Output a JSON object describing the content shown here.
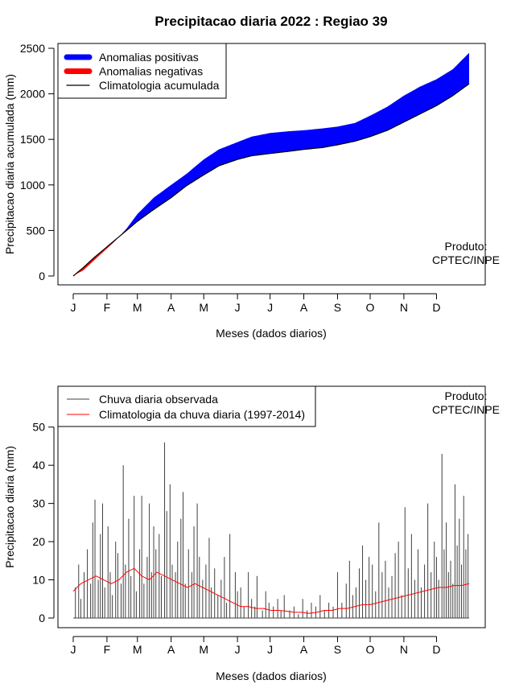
{
  "title": "Precipitacao diaria 2022 : Regiao 39",
  "chart_data": [
    {
      "type": "area",
      "ylabel": "Precipitacao diaria acumulada (mm)",
      "xlabel": "Meses (dados diarios)",
      "x_tick_labels": [
        "J",
        "F",
        "M",
        "A",
        "M",
        "J",
        "J",
        "A",
        "S",
        "O",
        "N",
        "D"
      ],
      "x_tick_days": [
        1,
        32,
        60,
        91,
        121,
        152,
        182,
        213,
        244,
        274,
        305,
        335
      ],
      "xlim": [
        1,
        365
      ],
      "ylim": [
        0,
        2500
      ],
      "y_ticks": [
        0,
        500,
        1000,
        1500,
        2000,
        2500
      ],
      "legend": {
        "position": "top-left",
        "entries": [
          "Anomalias positivas",
          "Anomalias negativas",
          "Climatologia acumulada"
        ]
      },
      "note": "Produto:\nCPTEC/INPE",
      "colors": {
        "positive": "#0000ff",
        "negative": "#ff0000",
        "climatology": "#000000"
      },
      "observed_cumulative": {
        "day": [
          1,
          10,
          20,
          30,
          40,
          50,
          60,
          75,
          91,
          105,
          121,
          135,
          152,
          165,
          182,
          200,
          213,
          230,
          244,
          260,
          274,
          290,
          305,
          320,
          335,
          350,
          365
        ],
        "value": [
          5,
          60,
          170,
          280,
          390,
          520,
          680,
          860,
          1000,
          1120,
          1280,
          1390,
          1470,
          1530,
          1570,
          1590,
          1600,
          1620,
          1640,
          1680,
          1760,
          1860,
          1980,
          2080,
          2160,
          2270,
          2450
        ]
      },
      "climatology_cumulative": {
        "day": [
          1,
          10,
          20,
          30,
          40,
          50,
          60,
          75,
          91,
          105,
          121,
          135,
          152,
          165,
          182,
          200,
          213,
          230,
          244,
          260,
          274,
          290,
          305,
          320,
          335,
          350,
          365
        ],
        "value": [
          0,
          90,
          200,
          300,
          400,
          500,
          600,
          730,
          860,
          990,
          1110,
          1210,
          1280,
          1320,
          1345,
          1370,
          1390,
          1410,
          1440,
          1480,
          1530,
          1600,
          1690,
          1780,
          1870,
          1980,
          2110
        ]
      }
    },
    {
      "type": "line",
      "ylabel": "Precipitacao diaria (mm)",
      "xlabel": "Meses (dados diarios)",
      "x_tick_labels": [
        "J",
        "F",
        "M",
        "A",
        "M",
        "J",
        "J",
        "A",
        "S",
        "O",
        "N",
        "D"
      ],
      "x_tick_days": [
        1,
        32,
        60,
        91,
        121,
        152,
        182,
        213,
        244,
        274,
        305,
        335
      ],
      "xlim": [
        1,
        365
      ],
      "ylim": [
        0,
        55
      ],
      "y_ticks": [
        0,
        10,
        20,
        30,
        40,
        50
      ],
      "legend": {
        "position": "top-left",
        "entries": [
          "Chuva diaria observada",
          "Climatologia da chuva diaria (1997-2014)"
        ]
      },
      "note": "Produto:\nCPTEC/INPE",
      "colors": {
        "observed": "#404040",
        "climatology": "#ff0000"
      },
      "observed_daily": {
        "day": [
          3,
          6,
          8,
          11,
          14,
          17,
          19,
          21,
          24,
          26,
          28,
          30,
          33,
          35,
          37,
          40,
          42,
          45,
          47,
          49,
          52,
          54,
          57,
          59,
          62,
          64,
          66,
          69,
          71,
          73,
          75,
          77,
          80,
          82,
          85,
          87,
          90,
          92,
          95,
          97,
          100,
          102,
          104,
          107,
          110,
          112,
          115,
          117,
          120,
          123,
          126,
          128,
          131,
          134,
          137,
          140,
          142,
          145,
          150,
          152,
          155,
          158,
          162,
          165,
          168,
          170,
          175,
          178,
          181,
          185,
          189,
          192,
          195,
          200,
          204,
          208,
          212,
          216,
          220,
          224,
          228,
          232,
          236,
          240,
          244,
          248,
          252,
          255,
          258,
          261,
          264,
          267,
          270,
          273,
          276,
          279,
          282,
          285,
          288,
          291,
          294,
          297,
          300,
          303,
          306,
          309,
          312,
          315,
          318,
          321,
          324,
          327,
          330,
          333,
          335,
          337,
          340,
          342,
          344,
          346,
          348,
          350,
          352,
          354,
          356,
          358,
          360,
          362,
          364
        ],
        "value": [
          8,
          14,
          5,
          12,
          18,
          9,
          25,
          31,
          10,
          22,
          30,
          8,
          24,
          12,
          6,
          20,
          17,
          9,
          40,
          14,
          26,
          11,
          32,
          7,
          18,
          32,
          9,
          16,
          30,
          12,
          24,
          18,
          22,
          11,
          46,
          28,
          35,
          14,
          12,
          20,
          26,
          33,
          9,
          18,
          12,
          24,
          30,
          16,
          10,
          14,
          21,
          8,
          13,
          6,
          10,
          16,
          4,
          22,
          12,
          7,
          8,
          3,
          12,
          5,
          3,
          11,
          2,
          7,
          4,
          3,
          5,
          2,
          6,
          2,
          3,
          1,
          5,
          2,
          4,
          3,
          6,
          2,
          4,
          3,
          12,
          4,
          9,
          15,
          6,
          8,
          13,
          19,
          10,
          16,
          14,
          7,
          25,
          12,
          15,
          8,
          11,
          17,
          20,
          6,
          29,
          13,
          22,
          10,
          18,
          8,
          14,
          30,
          12,
          20,
          16,
          10,
          43,
          18,
          25,
          12,
          15,
          9,
          35,
          19,
          26,
          14,
          32,
          18,
          22
        ]
      },
      "climatology_daily": {
        "day": [
          1,
          8,
          15,
          22,
          29,
          36,
          43,
          50,
          57,
          64,
          71,
          78,
          85,
          92,
          99,
          106,
          113,
          120,
          127,
          134,
          141,
          148,
          155,
          162,
          169,
          176,
          183,
          190,
          197,
          204,
          211,
          218,
          225,
          232,
          239,
          246,
          253,
          260,
          267,
          274,
          281,
          288,
          295,
          302,
          309,
          316,
          323,
          330,
          337,
          344,
          351,
          358,
          365
        ],
        "value": [
          7,
          9,
          10,
          11,
          10,
          9,
          10,
          12,
          13,
          11,
          10,
          12,
          11,
          10,
          9,
          8,
          9,
          8,
          7,
          6,
          5,
          4,
          3,
          3,
          2.5,
          2.5,
          2,
          2,
          1.8,
          1.5,
          1.5,
          1.2,
          1.5,
          2,
          2,
          2.5,
          2.5,
          3,
          3.5,
          3.5,
          4,
          4.5,
          5,
          5.5,
          6,
          6.5,
          7,
          7.5,
          8,
          8,
          8.5,
          8.5,
          9
        ]
      }
    }
  ]
}
